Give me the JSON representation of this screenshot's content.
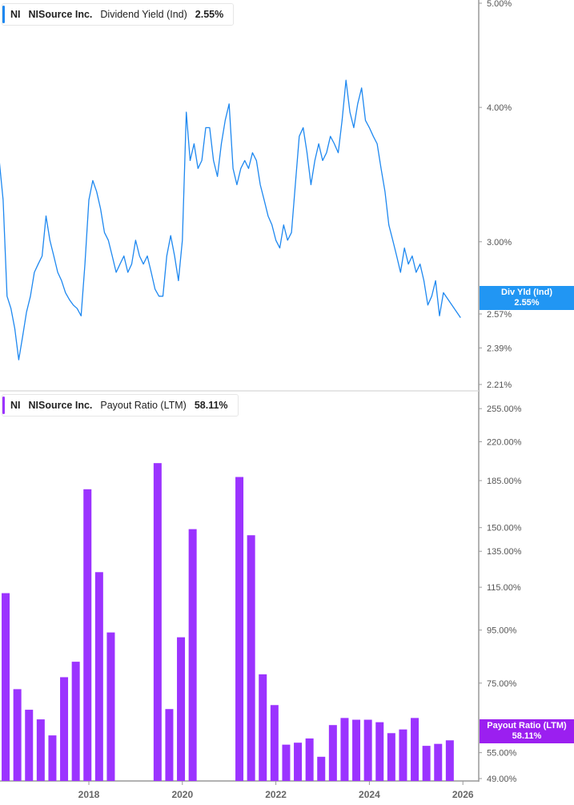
{
  "colors": {
    "yield_line": "#1E88F0",
    "payout_bar": "#9B33FF",
    "axis": "#999999",
    "label": "#555555"
  },
  "chart_data": [
    {
      "type": "line",
      "legend": {
        "ticker": "NI",
        "company": "NISource Inc.",
        "metric": "Dividend Yield (Ind)",
        "value": "2.55%"
      },
      "scale": "log",
      "ylim": [
        2.21,
        5.0
      ],
      "y_ticks": [
        "5.00%",
        "4.00%",
        "3.00%",
        "2.57%",
        "2.39%",
        "2.21%"
      ],
      "y_tick_values": [
        5.0,
        4.0,
        3.0,
        2.57,
        2.39,
        2.21
      ],
      "last_tag": {
        "label": "Div Yld (Ind)",
        "value": "2.55%"
      },
      "dates_start": "2016-02",
      "frequency": "monthly",
      "values": [
        3.57,
        3.28,
        2.67,
        2.6,
        2.49,
        2.33,
        2.45,
        2.58,
        2.67,
        2.81,
        2.86,
        2.91,
        3.17,
        3.01,
        2.91,
        2.81,
        2.76,
        2.69,
        2.65,
        2.62,
        2.6,
        2.56,
        2.86,
        3.28,
        3.42,
        3.34,
        3.22,
        3.06,
        3.01,
        2.91,
        2.81,
        2.86,
        2.91,
        2.81,
        2.86,
        3.01,
        2.91,
        2.86,
        2.91,
        2.81,
        2.71,
        2.67,
        2.67,
        2.91,
        3.04,
        2.91,
        2.76,
        3.01,
        3.96,
        3.57,
        3.7,
        3.51,
        3.57,
        3.83,
        3.83,
        3.57,
        3.45,
        3.7,
        3.89,
        4.03,
        3.51,
        3.39,
        3.51,
        3.57,
        3.51,
        3.63,
        3.57,
        3.39,
        3.28,
        3.17,
        3.11,
        3.01,
        2.96,
        3.11,
        3.01,
        3.06,
        3.39,
        3.76,
        3.83,
        3.63,
        3.39,
        3.57,
        3.7,
        3.57,
        3.63,
        3.76,
        3.7,
        3.63,
        3.89,
        4.24,
        3.96,
        3.83,
        4.03,
        4.17,
        3.89,
        3.83,
        3.76,
        3.7,
        3.51,
        3.34,
        3.11,
        3.01,
        2.91,
        2.81,
        2.96,
        2.86,
        2.91,
        2.81,
        2.86,
        2.76,
        2.62,
        2.67,
        2.76,
        2.56,
        2.69,
        2.55
      ]
    },
    {
      "type": "bar",
      "legend": {
        "ticker": "NI",
        "company": "NISource Inc.",
        "metric": "Payout Ratio (LTM)",
        "value": "58.11%"
      },
      "scale": "log",
      "ylim": [
        49,
        255
      ],
      "y_ticks": [
        "255.00%",
        "220.00%",
        "185.00%",
        "150.00%",
        "135.00%",
        "115.00%",
        "95.00%",
        "75.00%",
        "55.00%",
        "49.00%"
      ],
      "y_tick_values": [
        255,
        220,
        185,
        150,
        135,
        115,
        95,
        75,
        55,
        49
      ],
      "x_ticks": [
        "2018",
        "2020",
        "2022",
        "2024",
        "2026"
      ],
      "last_tag": {
        "label": "Payout Ratio (LTM)",
        "value": "58.11%"
      },
      "categories": [
        "2016-Q1",
        "2016-Q2",
        "2016-Q3",
        "2016-Q4",
        "2017-Q1",
        "2017-Q2",
        "2017-Q3",
        "2017-Q4",
        "2018-Q1",
        "2018-Q2",
        "2018-Q3",
        "2018-Q4",
        "2019-Q1",
        "2019-Q2",
        "2019-Q3",
        "2019-Q4",
        "2020-Q1",
        "2020-Q2",
        "2020-Q3",
        "2020-Q4",
        "2021-Q1",
        "2021-Q2",
        "2021-Q3",
        "2021-Q4",
        "2022-Q1",
        "2022-Q2",
        "2022-Q3",
        "2022-Q4",
        "2023-Q1",
        "2023-Q2",
        "2023-Q3",
        "2023-Q4",
        "2024-Q1",
        "2024-Q2",
        "2024-Q3",
        "2024-Q4",
        "2025-Q1",
        "2025-Q2",
        "2025-Q3"
      ],
      "values": [
        112,
        73,
        66.6,
        63.8,
        59.4,
        77,
        82.5,
        178,
        123,
        94,
        null,
        null,
        null,
        200,
        66.8,
        92,
        149,
        null,
        null,
        null,
        188,
        145,
        78,
        68,
        57,
        57.5,
        58.6,
        54,
        62.2,
        64.2,
        63.7,
        63.7,
        63,
        60,
        61,
        64.2,
        56.7,
        57.2,
        58.11
      ]
    }
  ]
}
